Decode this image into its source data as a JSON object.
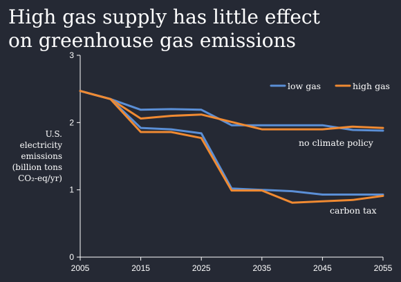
{
  "title_lines": [
    "High gas supply has little effect",
    "on greenhouse gas emissions"
  ],
  "chart_data": {
    "type": "line",
    "title": "High gas supply has little effect on greenhouse gas emissions",
    "ylabel_lines": [
      "U.S.",
      "electricity",
      "emissions",
      "(billion tons",
      "CO₂-eq/yr)"
    ],
    "x_ticks": [
      2005,
      2015,
      2025,
      2035,
      2045,
      2055
    ],
    "y_ticks": [
      0,
      1,
      2,
      3
    ],
    "xlim": [
      2005,
      2055
    ],
    "ylim": [
      0,
      3
    ],
    "legend": {
      "position": "top-right",
      "entries": [
        "low gas",
        "high gas"
      ]
    },
    "colors": {
      "low gas": "#5B8FD6",
      "high gas": "#F08A32"
    },
    "annotations": [
      "no climate policy",
      "carbon tax"
    ],
    "series": [
      {
        "name": "low gas",
        "scenario": "no climate policy",
        "x": [
          2005,
          2010,
          2015,
          2020,
          2025,
          2030,
          2035,
          2040,
          2045,
          2050,
          2055
        ],
        "y": [
          2.47,
          2.35,
          2.19,
          2.2,
          2.19,
          1.96,
          1.96,
          1.96,
          1.96,
          1.89,
          1.88
        ]
      },
      {
        "name": "high gas",
        "scenario": "no climate policy",
        "x": [
          2005,
          2010,
          2015,
          2020,
          2025,
          2030,
          2035,
          2040,
          2045,
          2050,
          2055
        ],
        "y": [
          2.47,
          2.35,
          2.06,
          2.1,
          2.12,
          2.01,
          1.9,
          1.9,
          1.9,
          1.94,
          1.92
        ]
      },
      {
        "name": "low gas",
        "scenario": "carbon tax",
        "x": [
          2005,
          2010,
          2015,
          2020,
          2025,
          2030,
          2035,
          2040,
          2045,
          2050,
          2055
        ],
        "y": [
          2.47,
          2.35,
          1.92,
          1.9,
          1.84,
          1.02,
          1.0,
          0.98,
          0.93,
          0.93,
          0.93
        ]
      },
      {
        "name": "high gas",
        "scenario": "carbon tax",
        "x": [
          2005,
          2010,
          2015,
          2020,
          2025,
          2030,
          2035,
          2040,
          2045,
          2050,
          2055
        ],
        "y": [
          2.47,
          2.35,
          1.86,
          1.86,
          1.77,
          0.99,
          0.99,
          0.81,
          0.83,
          0.85,
          0.91
        ]
      }
    ]
  }
}
